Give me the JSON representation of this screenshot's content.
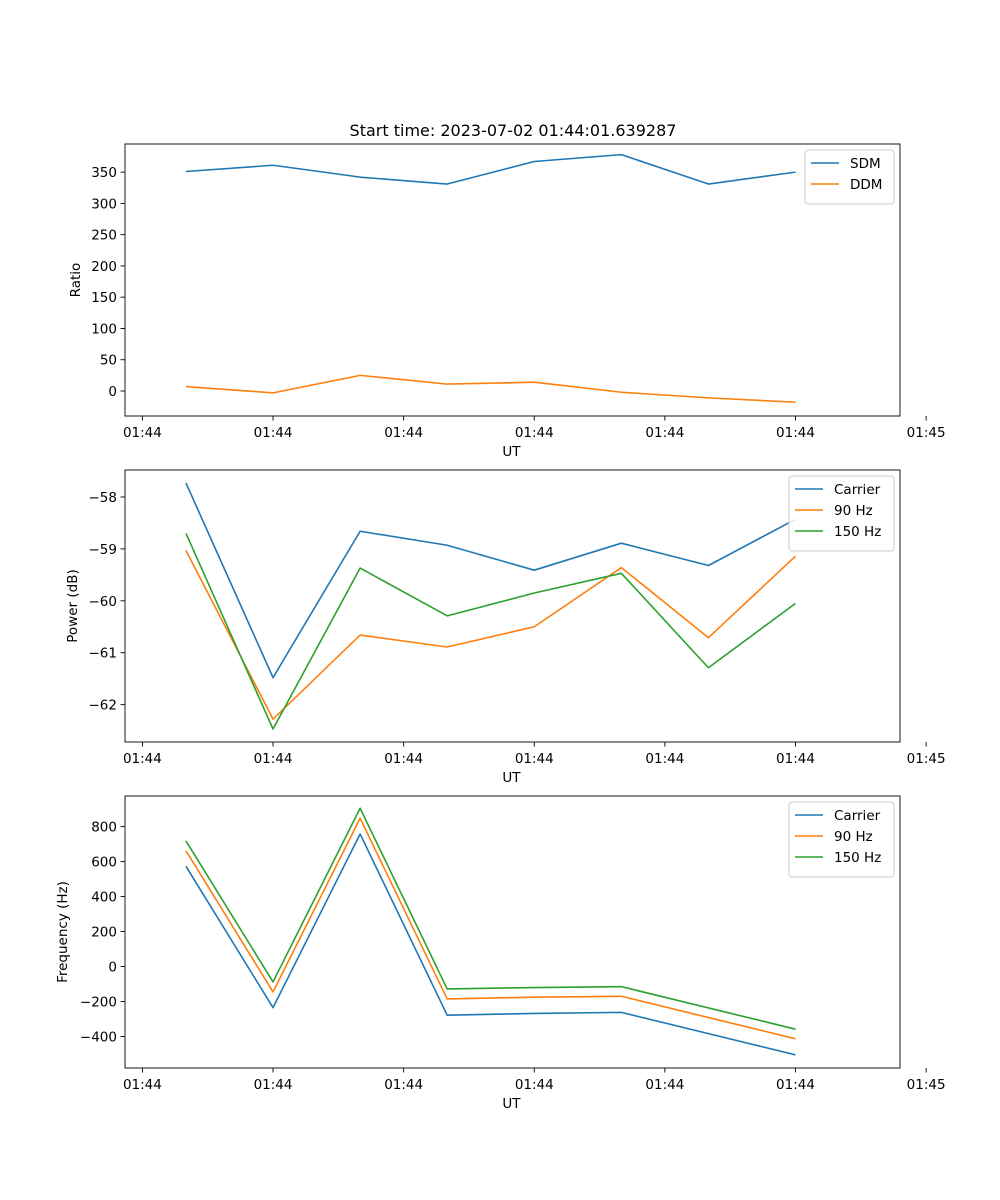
{
  "figure_title": "Start time: 2023-07-02 01:44:01.639287",
  "chart_data": [
    {
      "type": "line",
      "xlabel": "UT",
      "ylabel": "Ratio",
      "x": [
        1,
        2,
        3,
        4,
        5,
        6,
        7,
        8
      ],
      "xlim": [
        0.3,
        9.2
      ],
      "xticks": [
        0.5,
        2,
        3.5,
        5,
        6.5,
        8,
        9.5
      ],
      "xtick_labels": [
        "01:44",
        "01:44",
        "01:44",
        "01:44",
        "01:44",
        "01:44",
        "01:45"
      ],
      "ylim": [
        -40,
        395
      ],
      "yticks": [
        0,
        50,
        100,
        150,
        200,
        250,
        300,
        350
      ],
      "ytick_labels": [
        "0",
        "50",
        "100",
        "150",
        "200",
        "250",
        "300",
        "350"
      ],
      "legend_position": "top-right",
      "series": [
        {
          "name": "SDM",
          "color": "#1f77b4",
          "values": [
            351,
            361,
            342,
            331,
            367,
            378,
            331,
            350
          ]
        },
        {
          "name": "DDM",
          "color": "#ff7f0e",
          "values": [
            7,
            -3,
            25,
            11,
            14,
            -2,
            -11,
            -18
          ]
        }
      ]
    },
    {
      "type": "line",
      "xlabel": "UT",
      "ylabel": "Power (dB)",
      "x": [
        1,
        2,
        3,
        4,
        5,
        6,
        7,
        8
      ],
      "xlim": [
        0.3,
        9.2
      ],
      "xticks": [
        0.5,
        2,
        3.5,
        5,
        6.5,
        8,
        9.5
      ],
      "xtick_labels": [
        "01:44",
        "01:44",
        "01:44",
        "01:44",
        "01:44",
        "01:44",
        "01:45"
      ],
      "ylim": [
        -62.72,
        -57.48
      ],
      "yticks": [
        -62,
        -61,
        -60,
        -59,
        -58
      ],
      "ytick_labels": [
        "−62",
        "−61",
        "−60",
        "−59",
        "−58"
      ],
      "legend_position": "top-right",
      "series": [
        {
          "name": "Carrier",
          "color": "#1f77b4",
          "values": [
            -57.73,
            -61.48,
            -58.66,
            -58.93,
            -59.41,
            -58.89,
            -59.32,
            -58.43
          ]
        },
        {
          "name": "90 Hz",
          "color": "#ff7f0e",
          "values": [
            -59.03,
            -62.28,
            -60.66,
            -60.89,
            -60.5,
            -59.36,
            -60.71,
            -59.14
          ]
        },
        {
          "name": "150 Hz",
          "color": "#2ca02c",
          "values": [
            -58.7,
            -62.47,
            -59.37,
            -60.29,
            -59.85,
            -59.47,
            -61.29,
            -60.05
          ]
        }
      ]
    },
    {
      "type": "line",
      "xlabel": "UT",
      "ylabel": "Frequency (Hz)",
      "x": [
        1,
        2,
        3,
        4,
        5,
        6,
        7,
        8
      ],
      "xlim": [
        0.3,
        9.2
      ],
      "xticks": [
        0.5,
        2,
        3.5,
        5,
        6.5,
        8,
        9.5
      ],
      "xtick_labels": [
        "01:44",
        "01:44",
        "01:44",
        "01:44",
        "01:44",
        "01:44",
        "01:45"
      ],
      "ylim": [
        -580,
        975
      ],
      "yticks": [
        -400,
        -200,
        0,
        200,
        400,
        600,
        800
      ],
      "ytick_labels": [
        "−400",
        "−200",
        "0",
        "200",
        "400",
        "600",
        "800"
      ],
      "legend_position": "top-right",
      "series": [
        {
          "name": "Carrier",
          "color": "#1f77b4",
          "values": [
            573,
            -235,
            758,
            -278,
            -268,
            -262,
            null,
            -505
          ]
        },
        {
          "name": "90 Hz",
          "color": "#ff7f0e",
          "values": [
            662,
            -145,
            848,
            -185,
            -175,
            -170,
            null,
            -413
          ]
        },
        {
          "name": "150 Hz",
          "color": "#2ca02c",
          "values": [
            718,
            -88,
            905,
            -128,
            -120,
            -115,
            null,
            -358
          ]
        }
      ]
    }
  ]
}
